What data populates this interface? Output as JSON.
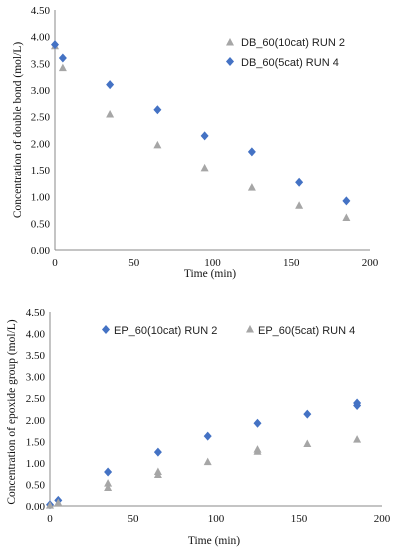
{
  "chart_data": [
    {
      "type": "scatter",
      "title": "",
      "xlabel": "Time (min)",
      "ylabel": "Concentration of double bond (mol/L)",
      "xlim": [
        0,
        200
      ],
      "ylim": [
        0,
        4.5
      ],
      "x_ticks": [
        "0",
        "50",
        "100",
        "150",
        "200"
      ],
      "y_ticks": [
        "0.00",
        "0.50",
        "1.00",
        "1.50",
        "2.00",
        "2.50",
        "3.00",
        "3.50",
        "4.00",
        "4.50"
      ],
      "grid": false,
      "legend_position": "top-right",
      "series": [
        {
          "name": "DB_60(10cat) RUN 2",
          "marker": "triangle",
          "color": "#a6a6a6",
          "x": [
            0,
            5,
            35,
            65,
            95,
            125,
            155,
            185
          ],
          "y": [
            3.83,
            3.42,
            2.55,
            1.97,
            1.54,
            1.18,
            0.84,
            0.61
          ]
        },
        {
          "name": "DB_60(5cat) RUN 4",
          "marker": "diamond",
          "color": "#4472c4",
          "x": [
            0,
            5,
            35,
            65,
            95,
            125,
            155,
            185
          ],
          "y": [
            3.85,
            3.6,
            3.1,
            2.63,
            2.14,
            1.84,
            1.27,
            0.92
          ]
        }
      ]
    },
    {
      "type": "scatter",
      "title": "",
      "xlabel": "Time (min)",
      "ylabel": "Concentration of epoxide group (mol/L)",
      "xlim": [
        0,
        200
      ],
      "ylim": [
        0,
        4.5
      ],
      "x_ticks": [
        "0",
        "50",
        "100",
        "150",
        "200"
      ],
      "y_ticks": [
        "0.00",
        "0.50",
        "1.00",
        "1.50",
        "2.00",
        "2.50",
        "3.00",
        "3.50",
        "4.00",
        "4.50"
      ],
      "grid": false,
      "legend_position": "top",
      "series": [
        {
          "name": "EP_60(10cat) RUN 2",
          "marker": "diamond",
          "color": "#4472c4",
          "x": [
            0,
            5,
            35,
            65,
            95,
            125,
            155,
            185,
            185
          ],
          "y": [
            0.03,
            0.13,
            0.79,
            1.25,
            1.62,
            1.92,
            2.13,
            2.33,
            2.39
          ]
        },
        {
          "name": "EP_60(5cat) RUN 4",
          "marker": "triangle",
          "color": "#a6a6a6",
          "x": [
            0,
            5,
            35,
            35,
            65,
            65,
            95,
            125,
            125,
            155,
            185
          ],
          "y": [
            0.02,
            0.08,
            0.43,
            0.53,
            0.73,
            0.8,
            1.03,
            1.27,
            1.32,
            1.45,
            1.55
          ]
        }
      ]
    }
  ]
}
